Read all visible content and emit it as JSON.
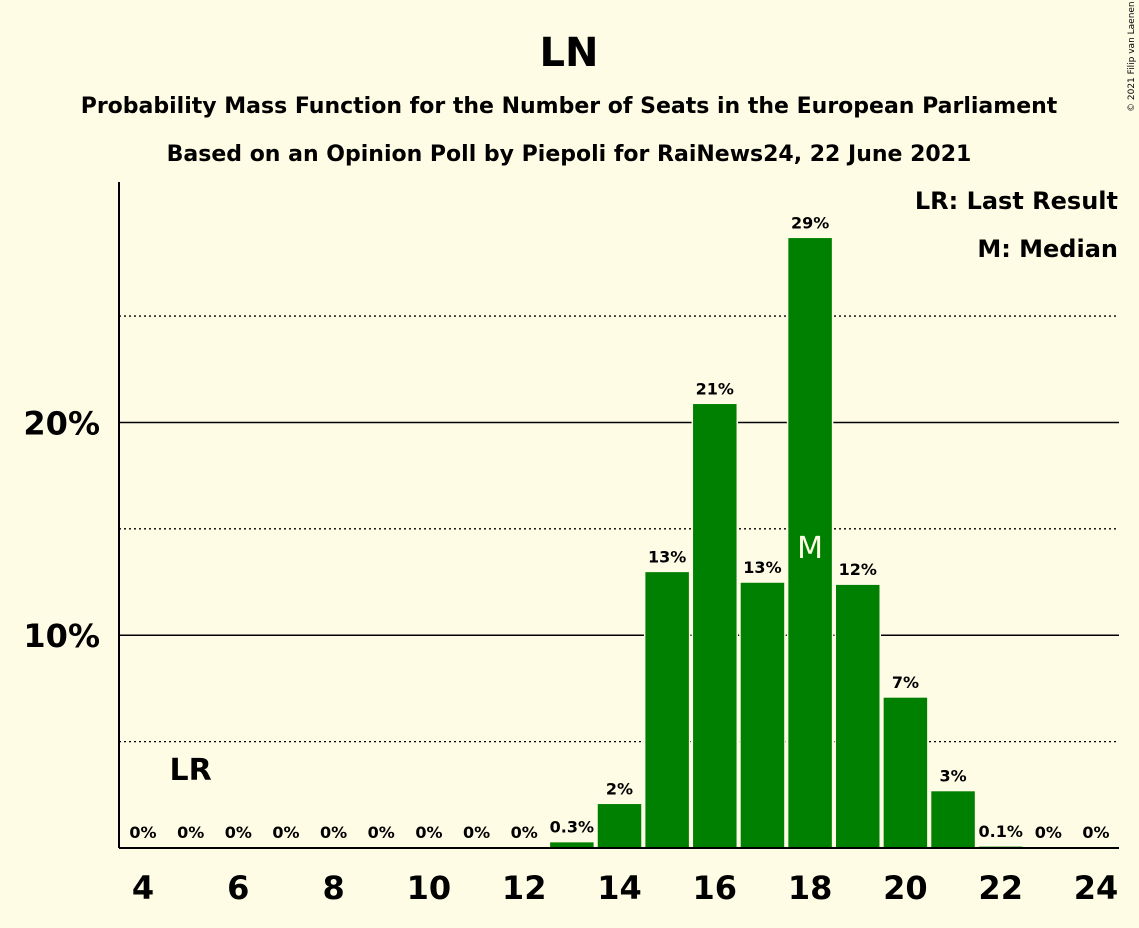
{
  "chart_data": {
    "type": "bar",
    "title": "LN",
    "subtitle_1": "Probability Mass Function for the Number of Seats in the European Parliament",
    "subtitle_2": "Based on an Opinion Poll by Piepoli for RaiNews24, 22 June 2021",
    "copyright": "© 2021 Filip van Laenen",
    "categories": [
      4,
      5,
      6,
      7,
      8,
      9,
      10,
      11,
      12,
      13,
      14,
      15,
      16,
      17,
      18,
      19,
      20,
      21,
      22,
      23,
      24
    ],
    "values": [
      0,
      0,
      0,
      0,
      0,
      0,
      0,
      0,
      0,
      0.3,
      2.1,
      13.0,
      20.9,
      12.5,
      28.7,
      12.4,
      7.1,
      2.7,
      0.1,
      0,
      0
    ],
    "value_labels": [
      "0%",
      "0%",
      "0%",
      "0%",
      "0%",
      "0%",
      "0%",
      "0%",
      "0%",
      "0.3%",
      "2%",
      "13%",
      "21%",
      "13%",
      "29%",
      "12%",
      "7%",
      "3%",
      "0.1%",
      "0%",
      "0%"
    ],
    "x_tick_labels": [
      "4",
      "6",
      "8",
      "10",
      "12",
      "14",
      "16",
      "18",
      "20",
      "22",
      "24"
    ],
    "y_tick_labels": [
      "10%",
      "20%"
    ],
    "ylim": [
      0,
      31.3
    ],
    "major_gridlines": [
      10,
      20
    ],
    "minor_gridlines": [
      5,
      15,
      25
    ],
    "last_result_seat": 5,
    "last_result_marker": "LR",
    "median_seat": 18,
    "median_marker": "M",
    "legend": [
      "LR: Last Result",
      "M: Median"
    ],
    "legend_position": "top-right",
    "bar_color": "#008000",
    "background_color": "#fffce6"
  }
}
